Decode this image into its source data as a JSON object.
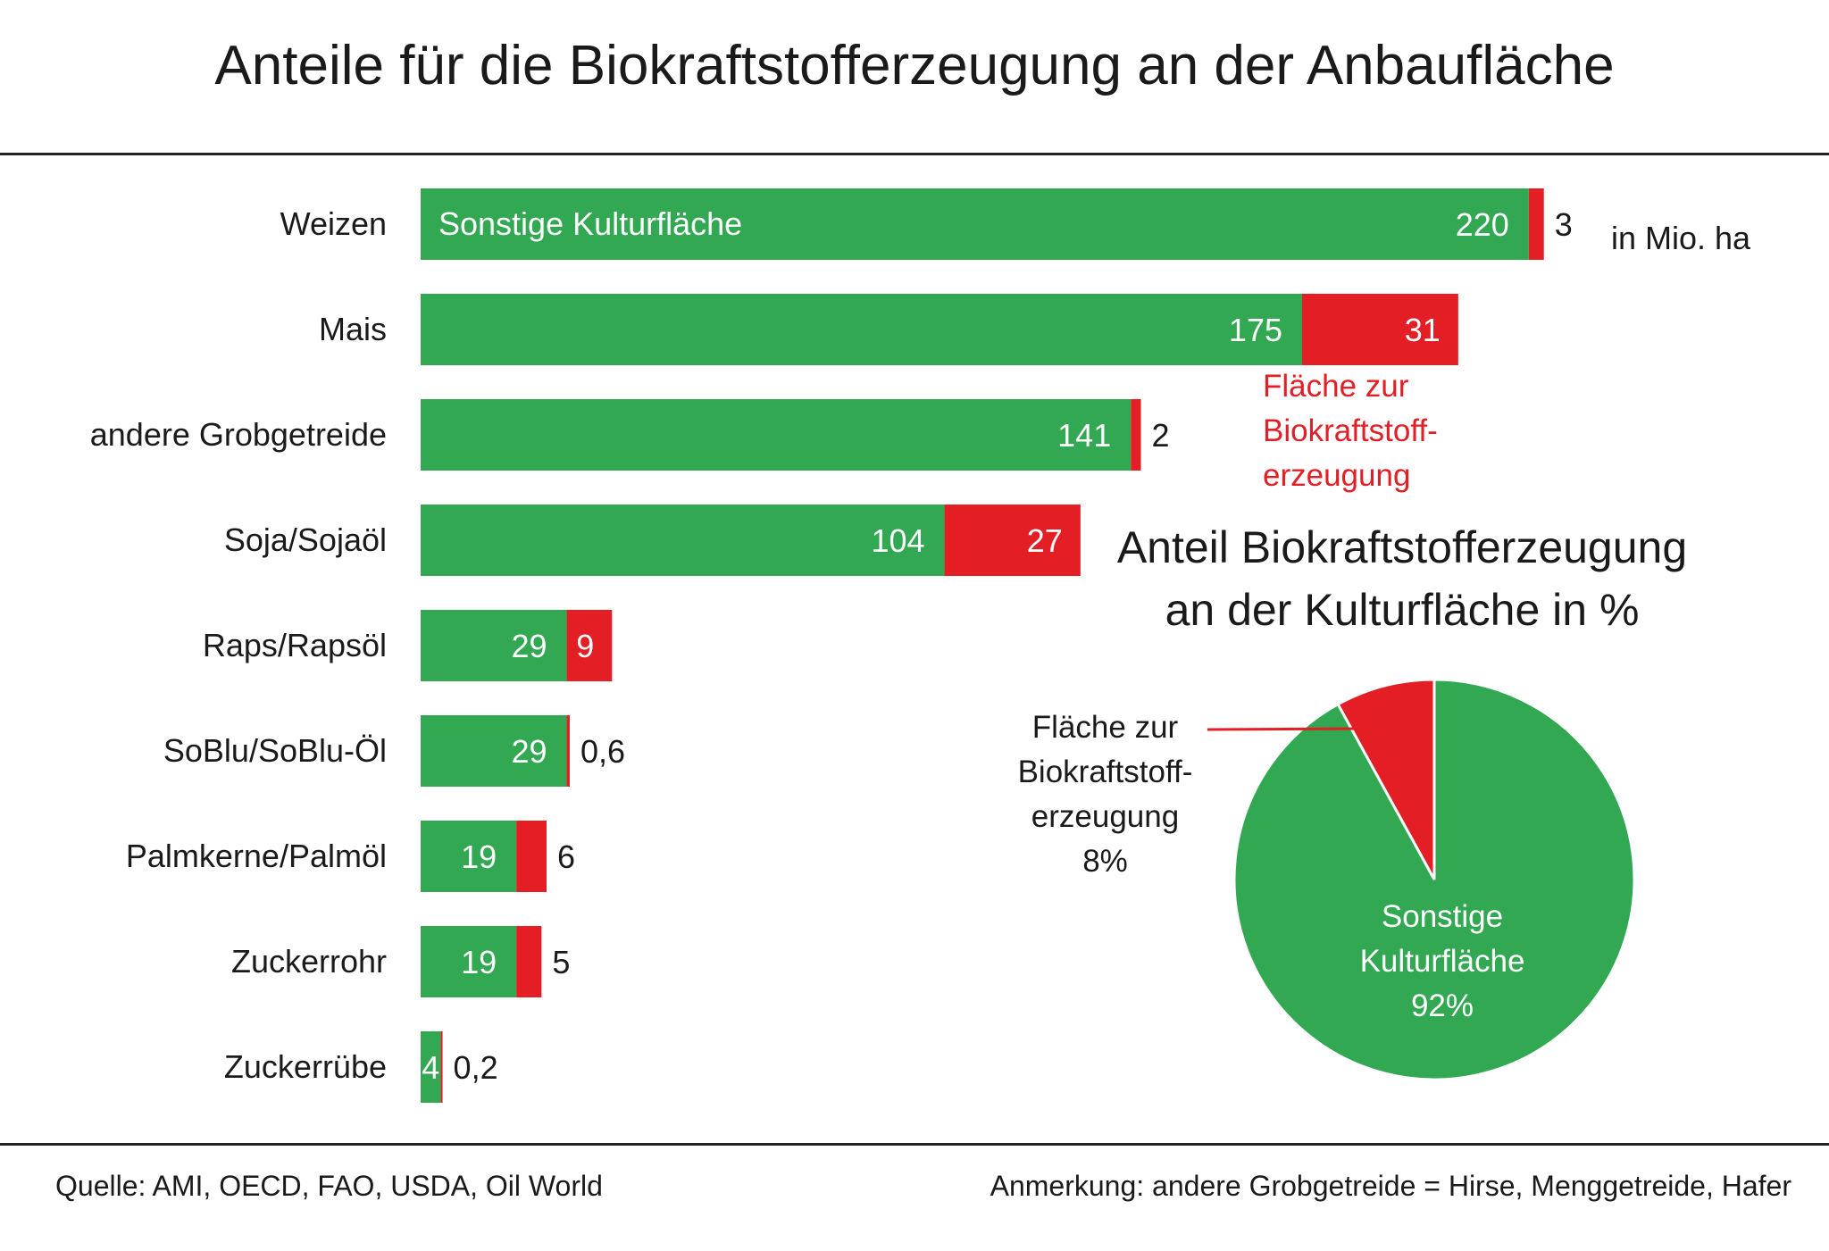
{
  "title": "Anteile für die Biokraftstofferzeugung an der Anbaufläche",
  "unit_label": "in Mio. ha",
  "colors": {
    "green": "#33a853",
    "red": "#e31e24"
  },
  "bar_legend": {
    "green_label": "Sonstige Kulturfläche",
    "red_label": "Fläche zur Biokraftstoff- erzeugung"
  },
  "pie_title_line1": "Anteil Biokraftstofferzeugung",
  "pie_title_line2": "an der Kulturfläche in %",
  "pie_labels": {
    "red_line1": "Fläche zur",
    "red_line2": "Biokraftstoff-",
    "red_line3": "erzeugung",
    "red_value": "8%",
    "green_line1": "Sonstige",
    "green_line2": "Kulturfläche",
    "green_value": "92%"
  },
  "footer": {
    "source": "Quelle:  AMI, OECD, FAO, USDA, Oil World",
    "note": "Anmerkung:  andere Grobgetreide = Hirse, Menggetreide, Hafer"
  },
  "chart_data": [
    {
      "type": "bar",
      "orientation": "horizontal",
      "stacked": true,
      "unit": "in Mio. ha",
      "categories": [
        "Weizen",
        "Mais",
        "andere Grobgetreide",
        "Soja/Sojaöl",
        "Raps/Rapsöl",
        "SoBlu/SoBlu-Öl",
        "Palmkerne/Palmöl",
        "Zuckerrohr",
        "Zuckerrübe"
      ],
      "series": [
        {
          "name": "Sonstige Kulturfläche",
          "color": "#33a853",
          "values": [
            220,
            175,
            141,
            104,
            29,
            29,
            19,
            19,
            4
          ],
          "labels": [
            "220",
            "175",
            "141",
            "104",
            "29",
            "29",
            "19",
            "19",
            "4"
          ]
        },
        {
          "name": "Fläche zur Biokraftstoff- erzeugung",
          "color": "#e31e24",
          "values": [
            3,
            31,
            2,
            27,
            9,
            0.6,
            6,
            5,
            0.2
          ],
          "labels": [
            "3",
            "31",
            "2",
            "27",
            "9",
            "0,6",
            "6",
            "5",
            "0,2"
          ]
        }
      ]
    },
    {
      "type": "pie",
      "title": "Anteil Biokraftstofferzeugung an der Kulturfläche in %",
      "slices": [
        {
          "label": "Fläche zur Biokraftstoff- erzeugung",
          "value": 8,
          "color": "#e31e24"
        },
        {
          "label": "Sonstige Kulturfläche",
          "value": 92,
          "color": "#33a853"
        }
      ]
    }
  ]
}
